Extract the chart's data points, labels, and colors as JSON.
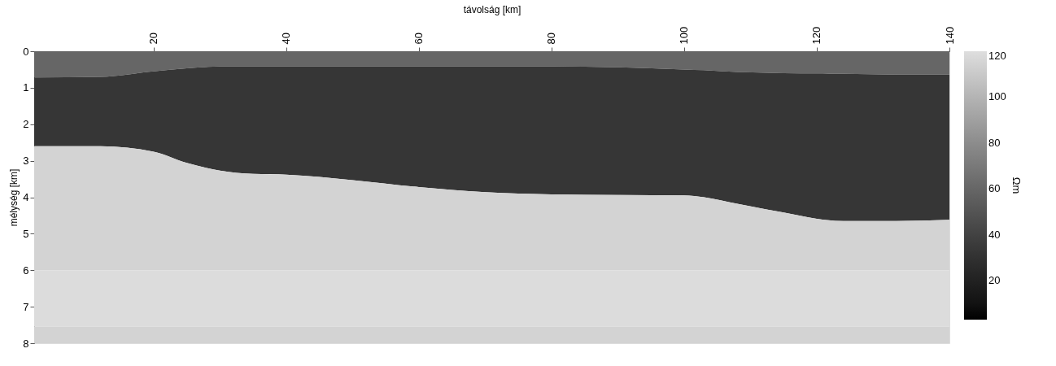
{
  "chart_data": {
    "type": "area",
    "stacked": true,
    "xlabel": "távolság [km]",
    "ylabel": "mélység [km]",
    "clabel": "Ωm",
    "x": [
      2,
      12,
      20,
      25,
      30,
      35,
      40,
      50,
      60,
      70,
      80,
      90,
      100,
      103,
      108,
      115,
      120,
      124,
      132,
      140
    ],
    "series": [
      {
        "color": "#666666",
        "values": [
          0.72,
          0.7,
          0.55,
          0.47,
          0.42,
          0.42,
          0.42,
          0.42,
          0.42,
          0.42,
          0.42,
          0.44,
          0.5,
          0.52,
          0.57,
          0.6,
          0.61,
          0.62,
          0.64,
          0.64
        ]
      },
      {
        "color": "#363636",
        "values": [
          1.88,
          1.9,
          2.2,
          2.59,
          2.85,
          2.94,
          2.96,
          3.11,
          3.3,
          3.44,
          3.5,
          3.5,
          3.45,
          3.48,
          3.61,
          3.82,
          3.98,
          4.03,
          4.01,
          3.98
        ]
      },
      {
        "color": "#d3d3d3",
        "values": [
          3.4,
          3.4,
          3.25,
          2.94,
          2.73,
          2.64,
          2.62,
          2.47,
          2.28,
          2.14,
          2.08,
          2.06,
          2.05,
          2.0,
          1.82,
          1.58,
          1.41,
          1.35,
          1.35,
          1.38
        ]
      },
      {
        "color": "#dcdcdc",
        "values": [
          1.55,
          1.55,
          1.55,
          1.55,
          1.55,
          1.55,
          1.55,
          1.55,
          1.55,
          1.55,
          1.55,
          1.55,
          1.55,
          1.55,
          1.55,
          1.55,
          1.55,
          1.55,
          1.55,
          1.55
        ]
      },
      {
        "color": "#d3d3d3",
        "values": [
          0.45,
          0.45,
          0.45,
          0.45,
          0.45,
          0.45,
          0.45,
          0.45,
          0.45,
          0.45,
          0.45,
          0.45,
          0.45,
          0.45,
          0.45,
          0.45,
          0.45,
          0.45,
          0.45,
          0.45
        ]
      }
    ],
    "xlim": [
      2,
      140
    ],
    "xticks": [
      20,
      40,
      60,
      80,
      100,
      120,
      140
    ],
    "ylim": [
      8,
      0
    ],
    "yticks": [
      0,
      1,
      2,
      3,
      4,
      5,
      6,
      7,
      8
    ],
    "clim": [
      3,
      120
    ],
    "cticks": [
      20,
      40,
      60,
      80,
      100,
      120
    ],
    "grid": false
  }
}
